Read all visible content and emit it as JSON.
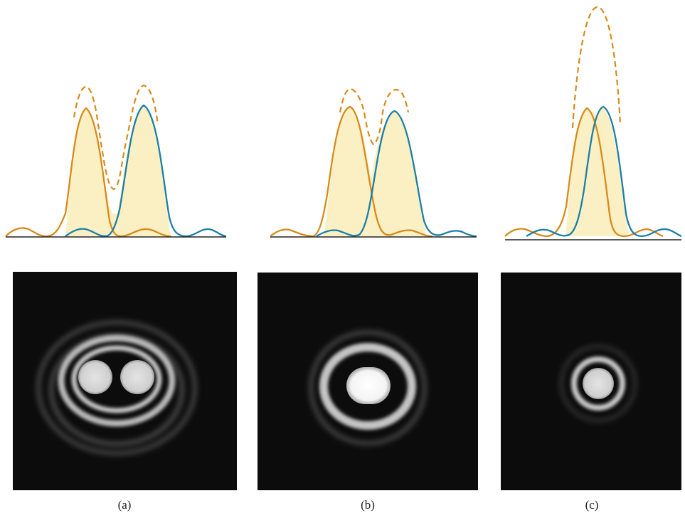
{
  "panels": [
    {
      "label": "(a)",
      "state": "resolved"
    },
    {
      "label": "(b)",
      "state": "just resolved"
    },
    {
      "label": "(c)",
      "state": "not resolved"
    }
  ],
  "colors": {
    "source_1": "#d88a1a",
    "source_2": "#1b7fa8",
    "sum_dashed": "#d88a1a",
    "fill": "#fbf0c4",
    "baseline": "#222222",
    "image_background": "#0c0c0c",
    "diffraction_disk": "#d8d8d8"
  }
}
